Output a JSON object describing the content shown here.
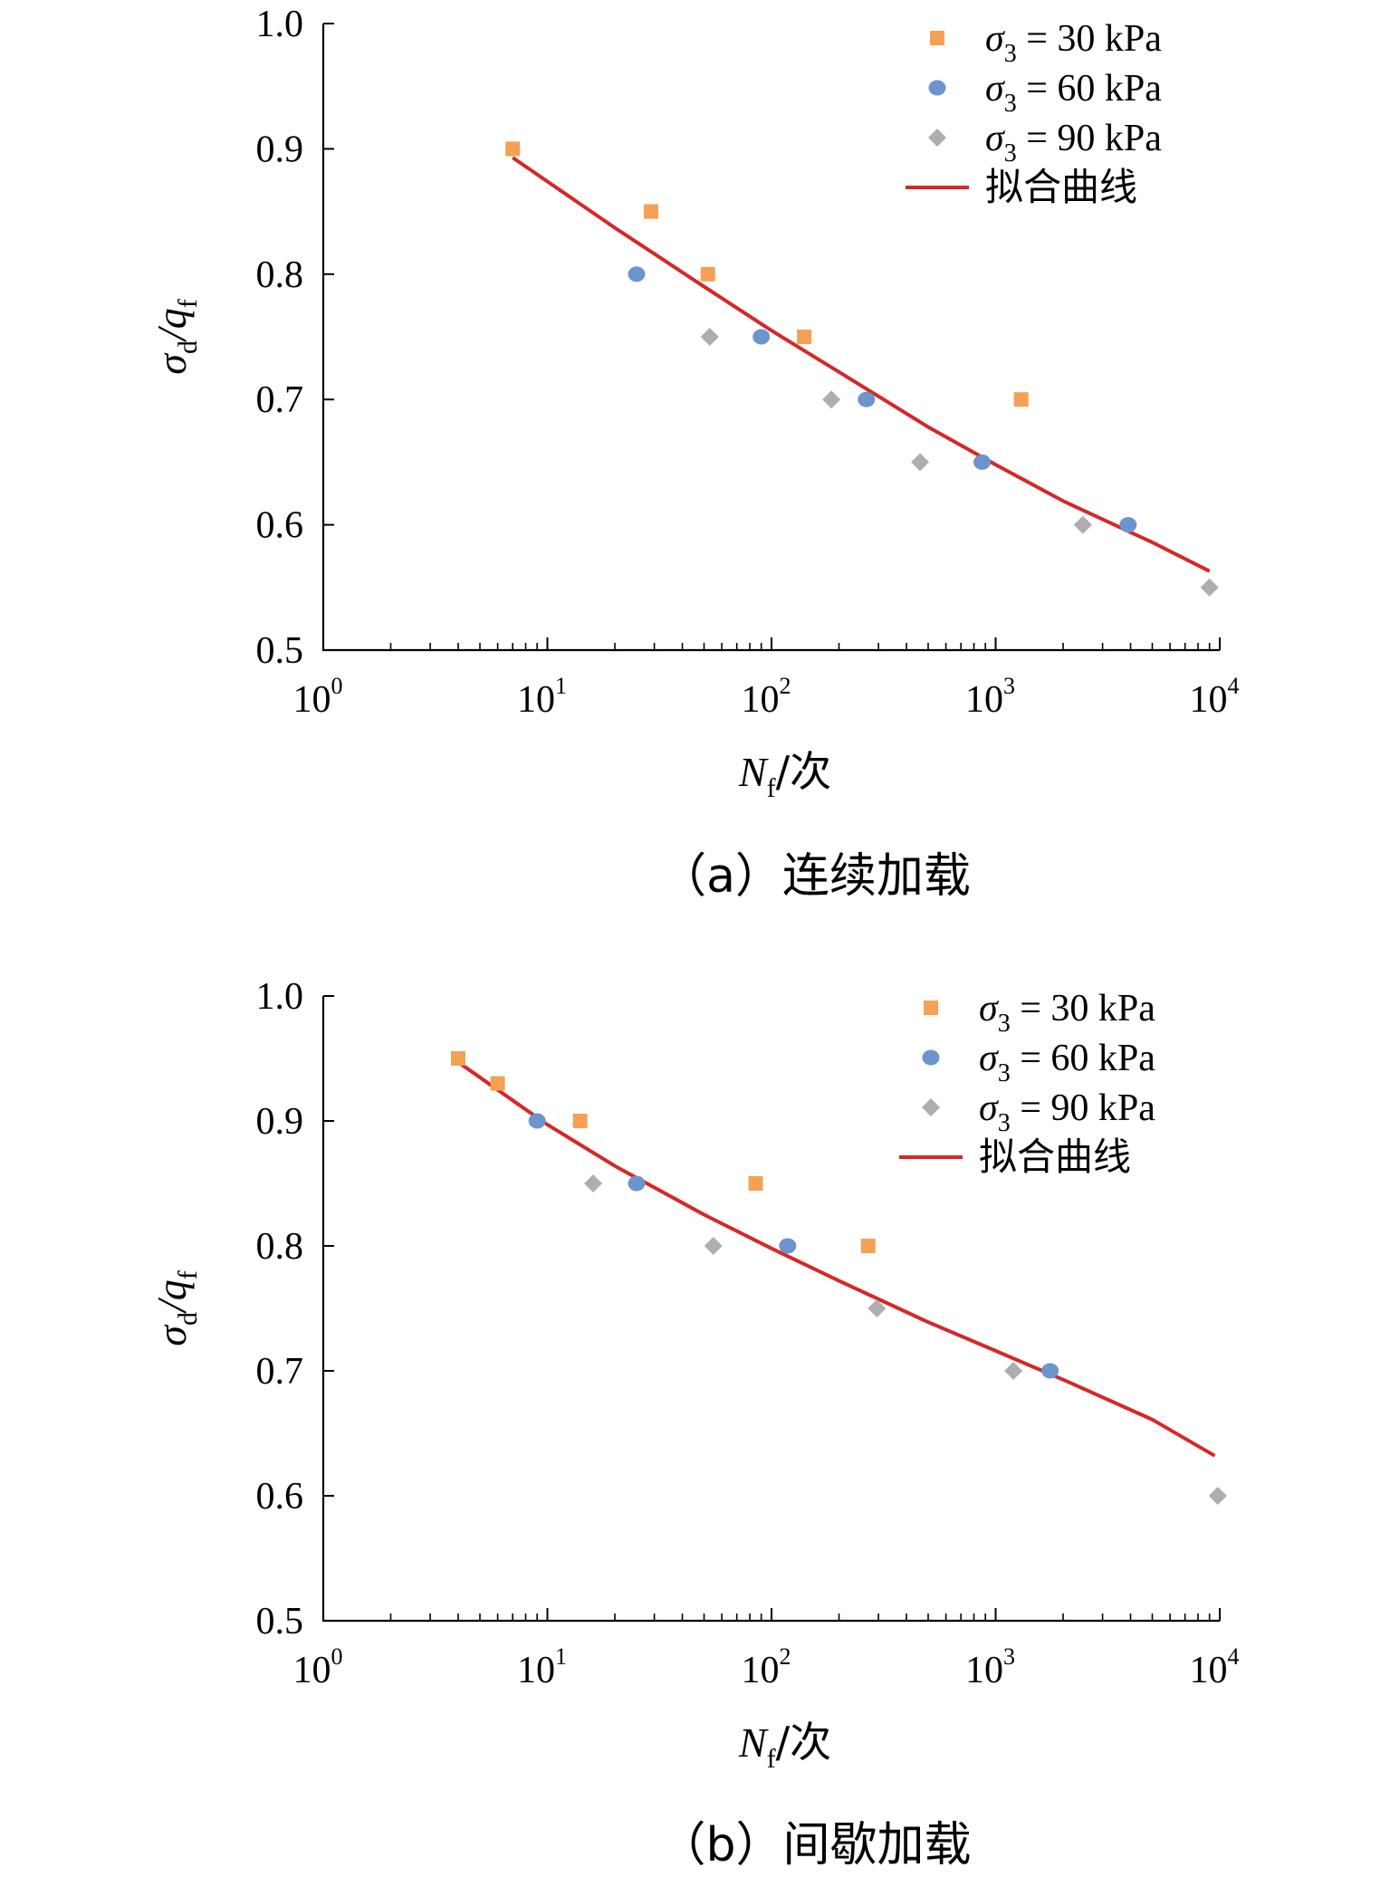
{
  "chart_data": [
    {
      "type": "scatter",
      "caption": "（a）连续加载",
      "xlabel_main": "N",
      "xlabel_sub": "f",
      "xlabel_unit": "/次",
      "ylabel_main": "σ",
      "ylabel_sub1": "d",
      "ylabel_mid": "/q",
      "ylabel_sub2": "f",
      "xscale": "log",
      "xlim": [
        1,
        10000
      ],
      "ylim": [
        0.5,
        1.0
      ],
      "yticks": [
        "0.5",
        "0.6",
        "0.7",
        "0.8",
        "0.9",
        "1.0"
      ],
      "xticks": [
        {
          "base": "10",
          "exp": "0"
        },
        {
          "base": "10",
          "exp": "1"
        },
        {
          "base": "10",
          "exp": "2"
        },
        {
          "base": "10",
          "exp": "3"
        },
        {
          "base": "10",
          "exp": "4"
        }
      ],
      "legend_position": "top-right",
      "series": [
        {
          "name_sym": "σ",
          "name_sub": "3",
          "name_val": " = 30 kPa",
          "marker": "square",
          "color": "#F4A155",
          "points": [
            [
              7,
              0.9
            ],
            [
              29,
              0.85
            ],
            [
              52,
              0.8
            ],
            [
              140,
              0.75
            ],
            [
              1300,
              0.7
            ]
          ]
        },
        {
          "name_sym": "σ",
          "name_sub": "3",
          "name_val": " = 60 kPa",
          "marker": "circle",
          "color": "#6C94CD",
          "points": [
            [
              25,
              0.8
            ],
            [
              90,
              0.75
            ],
            [
              265,
              0.7
            ],
            [
              870,
              0.65
            ],
            [
              3900,
              0.6
            ]
          ]
        },
        {
          "name_sym": "σ",
          "name_sub": "3",
          "name_val": " = 90 kPa",
          "marker": "diamond",
          "color": "#AEAEB0",
          "points": [
            [
              53,
              0.75
            ],
            [
              185,
              0.7
            ],
            [
              460,
              0.65
            ],
            [
              2450,
              0.6
            ],
            [
              9000,
              0.55
            ]
          ]
        }
      ],
      "fit": {
        "name": "拟合曲线",
        "color": "#D62728",
        "points": [
          [
            7,
            0.893
          ],
          [
            20,
            0.837
          ],
          [
            50,
            0.79
          ],
          [
            100,
            0.755
          ],
          [
            200,
            0.722
          ],
          [
            500,
            0.678
          ],
          [
            1000,
            0.648
          ],
          [
            2000,
            0.619
          ],
          [
            5000,
            0.586
          ],
          [
            9000,
            0.563
          ]
        ]
      }
    },
    {
      "type": "scatter",
      "caption": "（b）间歇加载",
      "xlabel_main": "N",
      "xlabel_sub": "f",
      "xlabel_unit": "/次",
      "ylabel_main": "σ",
      "ylabel_sub1": "d",
      "ylabel_mid": "/q",
      "ylabel_sub2": "f",
      "xscale": "log",
      "xlim": [
        1,
        10000
      ],
      "ylim": [
        0.5,
        1.0
      ],
      "yticks": [
        "0.5",
        "0.6",
        "0.7",
        "0.8",
        "0.9",
        "1.0"
      ],
      "xticks": [
        {
          "base": "10",
          "exp": "0"
        },
        {
          "base": "10",
          "exp": "1"
        },
        {
          "base": "10",
          "exp": "2"
        },
        {
          "base": "10",
          "exp": "3"
        },
        {
          "base": "10",
          "exp": "4"
        }
      ],
      "legend_position": "top-right",
      "series": [
        {
          "name_sym": "σ",
          "name_sub": "3",
          "name_val": " = 30 kPa",
          "marker": "square",
          "color": "#F4A155",
          "points": [
            [
              4,
              0.95
            ],
            [
              6,
              0.93
            ],
            [
              14,
              0.9
            ],
            [
              85,
              0.85
            ],
            [
              270,
              0.8
            ]
          ]
        },
        {
          "name_sym": "σ",
          "name_sub": "3",
          "name_val": " = 60 kPa",
          "marker": "circle",
          "color": "#6C94CD",
          "points": [
            [
              9,
              0.9
            ],
            [
              25,
              0.85
            ],
            [
              118,
              0.8
            ],
            [
              1750,
              0.7
            ]
          ]
        },
        {
          "name_sym": "σ",
          "name_sub": "3",
          "name_val": " = 90 kPa",
          "marker": "diamond",
          "color": "#AEAEB0",
          "points": [
            [
              16,
              0.85
            ],
            [
              55,
              0.8
            ],
            [
              295,
              0.75
            ],
            [
              1200,
              0.7
            ],
            [
              9800,
              0.6
            ]
          ]
        }
      ],
      "fit": {
        "name": "拟合曲线",
        "color": "#D62728",
        "points": [
          [
            4,
            0.947
          ],
          [
            10,
            0.897
          ],
          [
            20,
            0.864
          ],
          [
            50,
            0.825
          ],
          [
            100,
            0.798
          ],
          [
            200,
            0.772
          ],
          [
            500,
            0.739
          ],
          [
            1000,
            0.716
          ],
          [
            2000,
            0.693
          ],
          [
            5000,
            0.661
          ],
          [
            9500,
            0.632
          ]
        ]
      }
    }
  ]
}
